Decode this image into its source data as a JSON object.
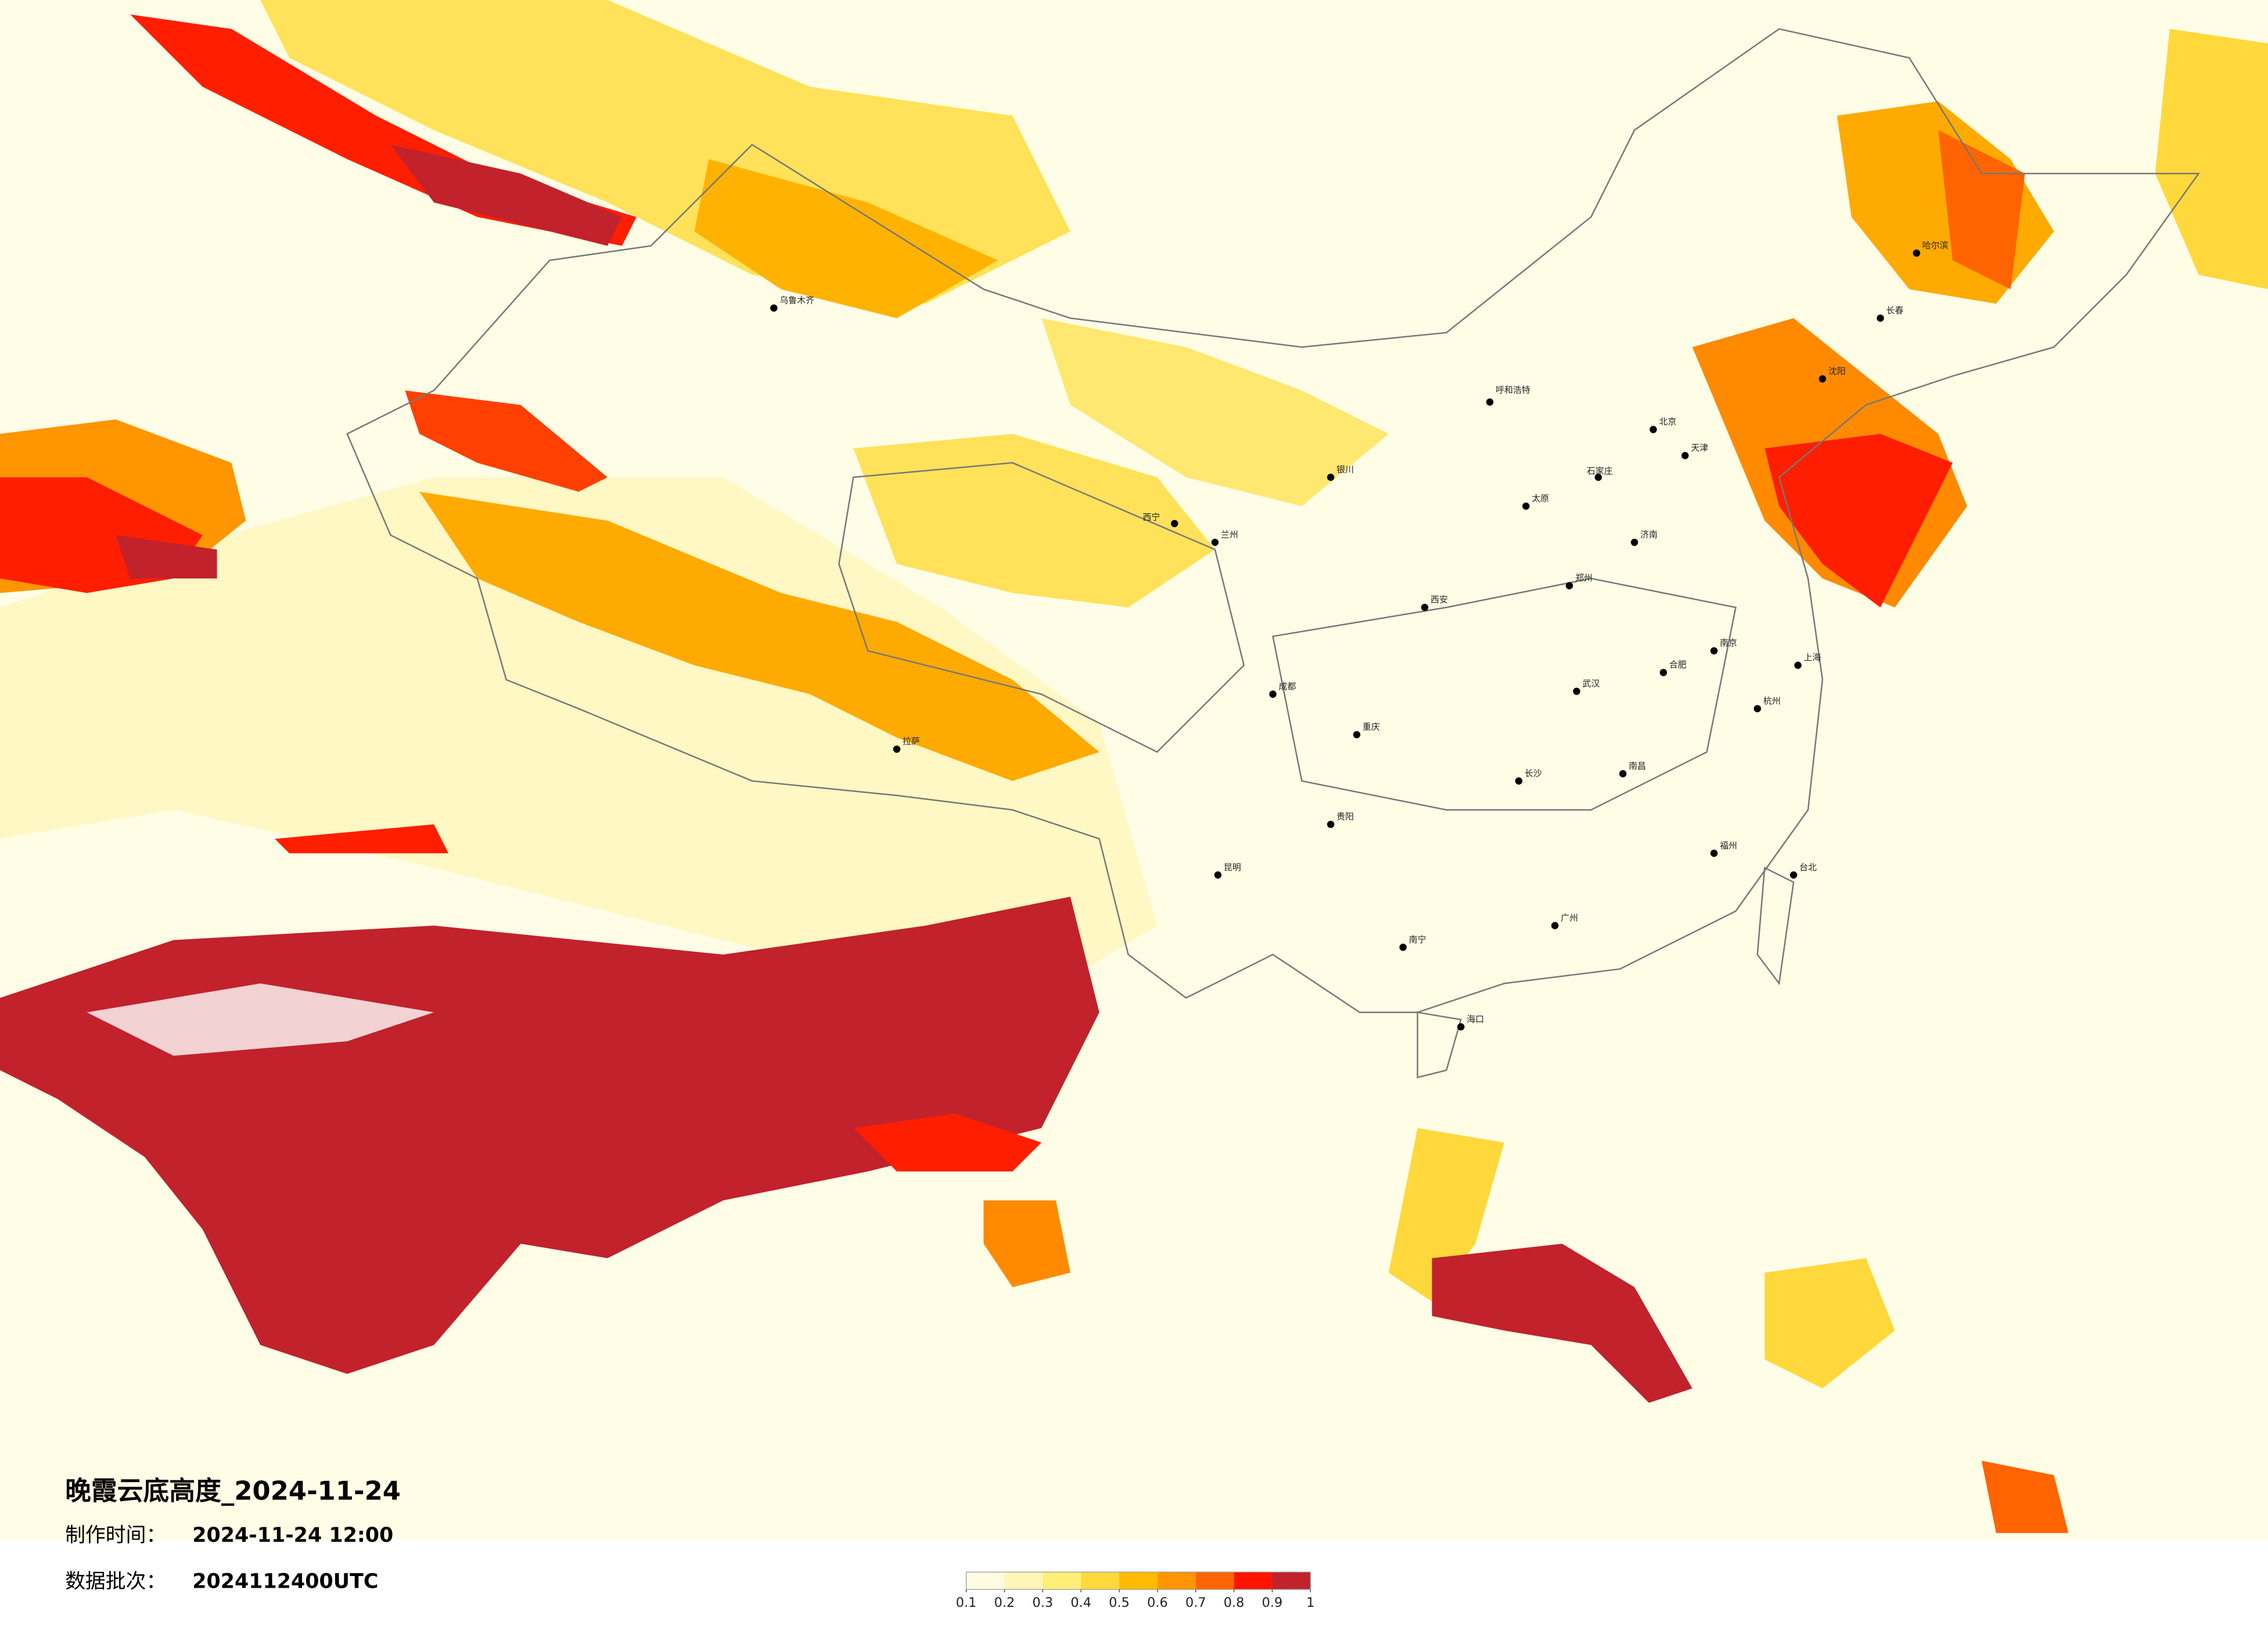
{
  "title": "晚霞云底高度_2024-11-24",
  "made_time": {
    "label": "制作时间：",
    "value": "2024-11-24 12:00"
  },
  "batch": {
    "label": "数据批次：",
    "value": "2024112400UTC"
  },
  "legend": {
    "ticks": [
      0.1,
      0.2,
      0.3,
      0.4,
      0.5,
      0.6,
      0.7,
      0.8,
      0.9,
      1
    ],
    "colors": [
      "#fffbe2",
      "#fff6b6",
      "#ffee78",
      "#ffd83c",
      "#ffbb00",
      "#ff9500",
      "#ff6400",
      "#ff1400",
      "#c1222c"
    ]
  },
  "cities": [
    "北京",
    "天津",
    "石家庄",
    "太原",
    "呼和浩特",
    "沈阳",
    "长春",
    "哈尔滨",
    "上海",
    "南京",
    "杭州",
    "合肥",
    "福州",
    "南昌",
    "济南",
    "郑州",
    "武汉",
    "长沙",
    "广州",
    "南宁",
    "海口",
    "重庆",
    "成都",
    "贵阳",
    "昆明",
    "拉萨",
    "西安",
    "兰州",
    "西宁",
    "银川",
    "乌鲁木齐",
    "台北"
  ]
}
